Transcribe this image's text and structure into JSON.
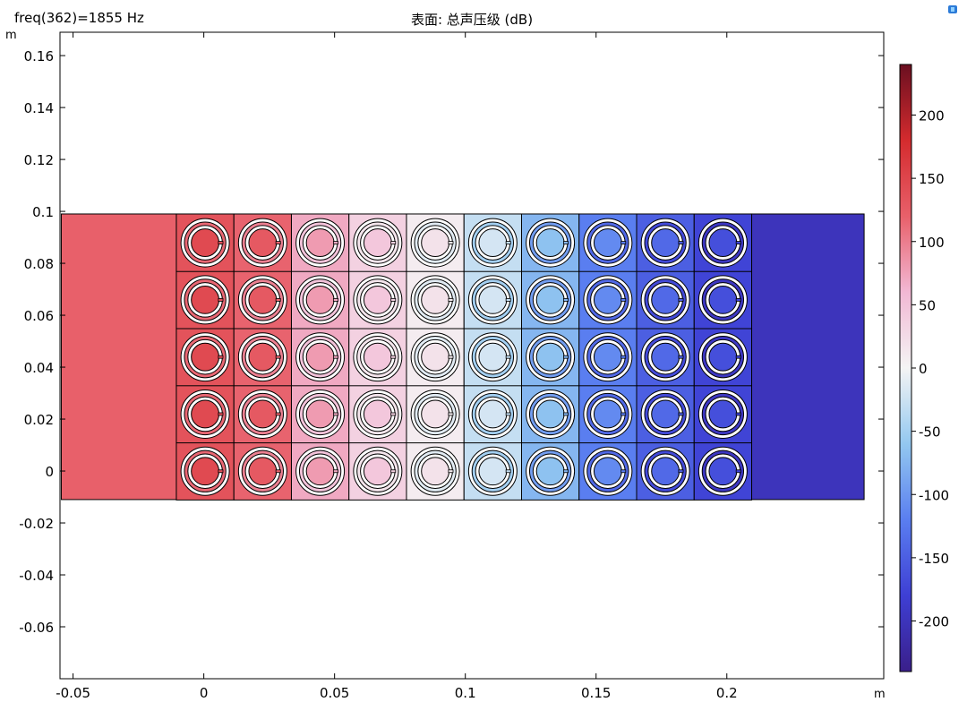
{
  "header": {
    "freq_label": "freq(362)=1855 Hz",
    "title": "表面: 总声压级 (dB)"
  },
  "chart_data": {
    "type": "heatmap",
    "title": "表面: 总声压级 (dB)",
    "x_unit": "m",
    "y_unit": "m",
    "xlim": [
      -0.055,
      0.26
    ],
    "ylim": [
      -0.08,
      0.169
    ],
    "x_ticks": [
      -0.05,
      0,
      0.05,
      0.1,
      0.15,
      0.2
    ],
    "x_tick_labels": [
      "-0.05",
      "0",
      "0.05",
      "0.1",
      "0.15",
      "0.2"
    ],
    "y_ticks": [
      0.16,
      0.14,
      0.12,
      0.1,
      0.08,
      0.06,
      0.04,
      0.02,
      0,
      -0.02,
      -0.04,
      -0.06
    ],
    "y_tick_labels": [
      "0.16",
      "0.14",
      "0.12",
      "0.1",
      "0.08",
      "0.06",
      "0.04",
      "0.02",
      "0",
      "-0.02",
      "-0.04",
      "-0.06"
    ],
    "domain": {
      "x0": -0.0545,
      "x1": 0.2525,
      "y0": -0.011,
      "y1": 0.099
    },
    "inlet_region_value": 120,
    "outlet_region_value": -200,
    "grid": {
      "columns": 10,
      "rows": 5,
      "x_start": -0.0105,
      "cell_size": 0.022,
      "y_start": -0.011
    },
    "column_values": [
      135,
      118,
      70,
      35,
      8,
      -30,
      -75,
      -120,
      -150,
      -175
    ],
    "colorbar": {
      "range": [
        -240,
        240
      ],
      "ticks": [
        200,
        150,
        100,
        50,
        0,
        -50,
        -100,
        -150,
        -200
      ],
      "tick_labels": [
        "200",
        "150",
        "100",
        "50",
        "0",
        "-50",
        "-100",
        "-150",
        "-200"
      ],
      "colors": [
        "#3a1f8a",
        "#3e3fd4",
        "#5a7ef0",
        "#93c8f0",
        "#f4f4f4",
        "#f2b8d4",
        "#e8606a",
        "#d42b2e",
        "#6a0f20"
      ]
    }
  }
}
